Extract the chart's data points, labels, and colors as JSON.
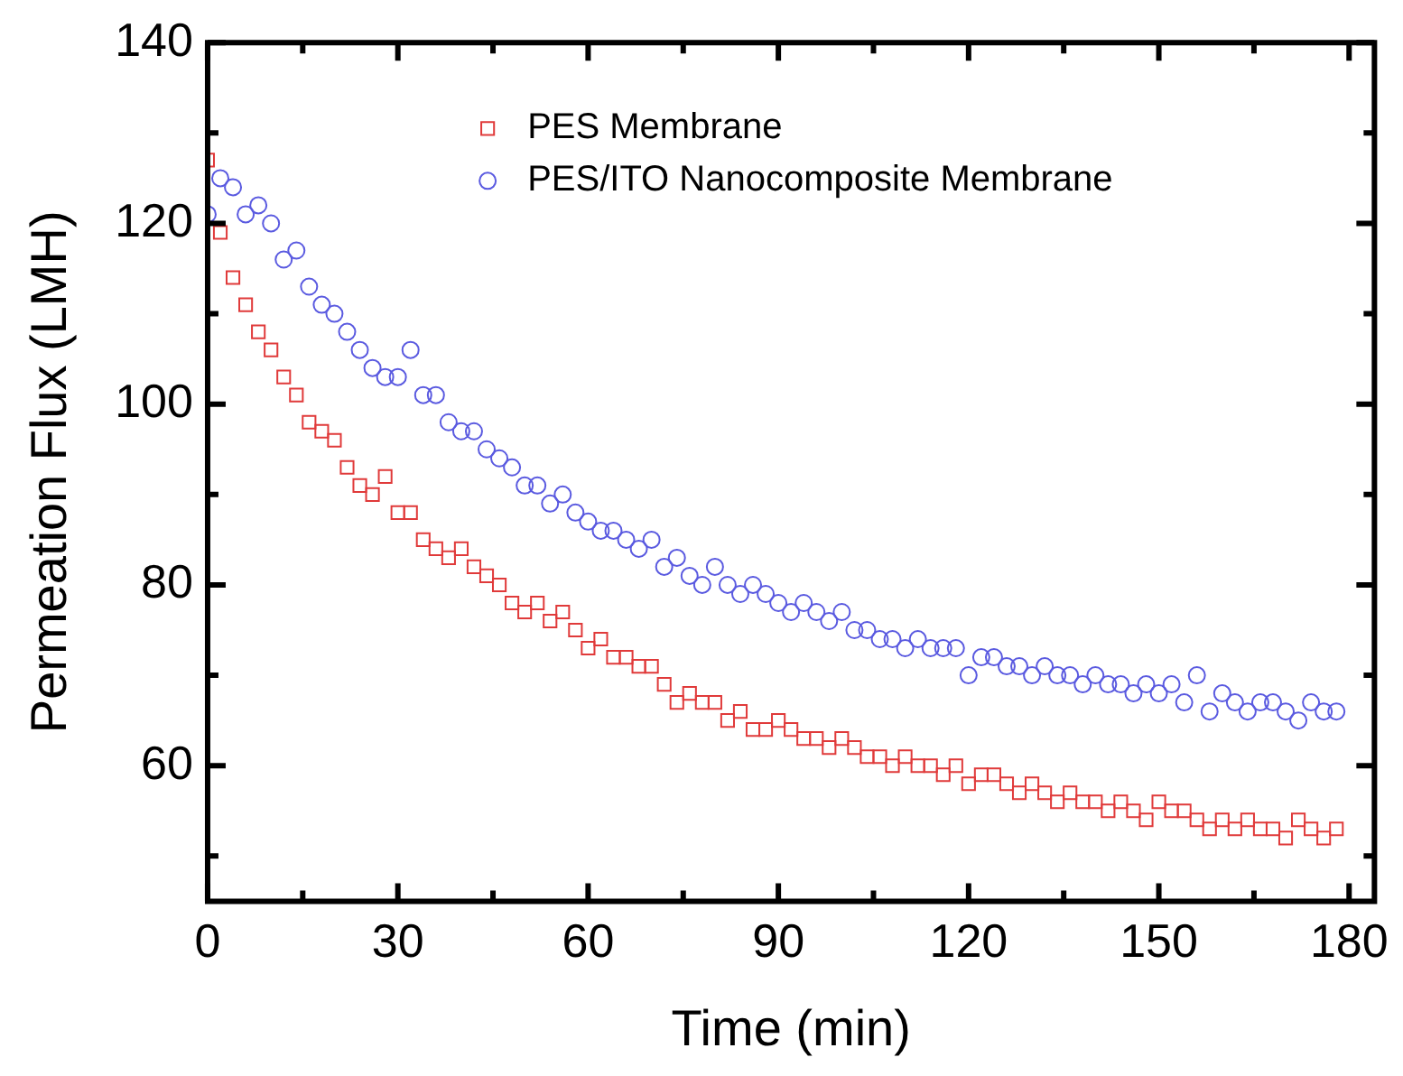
{
  "chart_data": {
    "type": "scatter",
    "xlabel": "Time (min)",
    "ylabel": "Permeation Flux (LMH)",
    "x": [
      0,
      2,
      4,
      6,
      8,
      10,
      12,
      14,
      16,
      18,
      20,
      22,
      24,
      26,
      28,
      30,
      32,
      34,
      36,
      38,
      40,
      42,
      44,
      46,
      48,
      50,
      52,
      54,
      56,
      58,
      60,
      62,
      64,
      66,
      68,
      70,
      72,
      74,
      76,
      78,
      80,
      82,
      84,
      86,
      88,
      90,
      92,
      94,
      96,
      98,
      100,
      102,
      104,
      106,
      108,
      110,
      112,
      114,
      116,
      118,
      120,
      122,
      124,
      126,
      128,
      130,
      132,
      134,
      136,
      138,
      140,
      142,
      144,
      146,
      148,
      150,
      152,
      154,
      156,
      158,
      160,
      162,
      164,
      166,
      168,
      170,
      172,
      174,
      176,
      178
    ],
    "series": [
      {
        "name": "PES Membrane",
        "color": "#e03a3a",
        "marker": "square",
        "values": [
          127,
          119,
          114,
          111,
          108,
          106,
          103,
          101,
          98,
          97,
          96,
          93,
          91,
          90,
          92,
          88,
          88,
          85,
          84,
          83,
          84,
          82,
          81,
          80,
          78,
          77,
          78,
          76,
          77,
          75,
          73,
          74,
          72,
          72,
          71,
          71,
          69,
          67,
          68,
          67,
          67,
          65,
          66,
          64,
          64,
          65,
          64,
          63,
          63,
          62,
          63,
          62,
          61,
          61,
          60,
          61,
          60,
          60,
          59,
          60,
          58,
          59,
          59,
          58,
          57,
          58,
          57,
          56,
          57,
          56,
          56,
          55,
          56,
          55,
          54,
          56,
          55,
          55,
          54,
          53,
          54,
          53,
          54,
          53,
          53,
          52,
          54,
          53,
          52,
          53
        ]
      },
      {
        "name": "PES/ITO Nanocomposite Membrane",
        "color": "#5a5ae0",
        "marker": "circle",
        "values": [
          121,
          125,
          124,
          121,
          122,
          120,
          116,
          117,
          113,
          111,
          110,
          108,
          106,
          104,
          103,
          103,
          106,
          101,
          101,
          98,
          97,
          97,
          95,
          94,
          93,
          91,
          91,
          89,
          90,
          88,
          87,
          86,
          86,
          85,
          84,
          85,
          82,
          83,
          81,
          80,
          82,
          80,
          79,
          80,
          79,
          78,
          77,
          78,
          77,
          76,
          77,
          75,
          75,
          74,
          74,
          73,
          74,
          73,
          73,
          73,
          70,
          72,
          72,
          71,
          71,
          70,
          71,
          70,
          70,
          69,
          70,
          69,
          69,
          68,
          69,
          68,
          69,
          67,
          70,
          66,
          68,
          67,
          66,
          67,
          67,
          66,
          65,
          67,
          66,
          66
        ]
      }
    ],
    "xlim": [
      0,
      184
    ],
    "ylim": [
      45,
      140
    ],
    "xticks": [
      0,
      {
        "value": 15,
        "label": null
      },
      30,
      {
        "value": 45,
        "label": null
      },
      60,
      {
        "value": 75,
        "label": null
      },
      90,
      {
        "value": 105,
        "label": null
      },
      120,
      {
        "value": 135,
        "label": null
      },
      150,
      {
        "value": 165,
        "label": null
      },
      180
    ],
    "yticks": [
      {
        "value": 50,
        "label": null
      },
      60,
      {
        "value": 70,
        "label": null
      },
      80,
      {
        "value": 90,
        "label": null
      },
      100,
      {
        "value": 110,
        "label": null
      },
      120,
      {
        "value": 130,
        "label": null
      },
      140
    ],
    "grid": false,
    "legend": "top"
  }
}
